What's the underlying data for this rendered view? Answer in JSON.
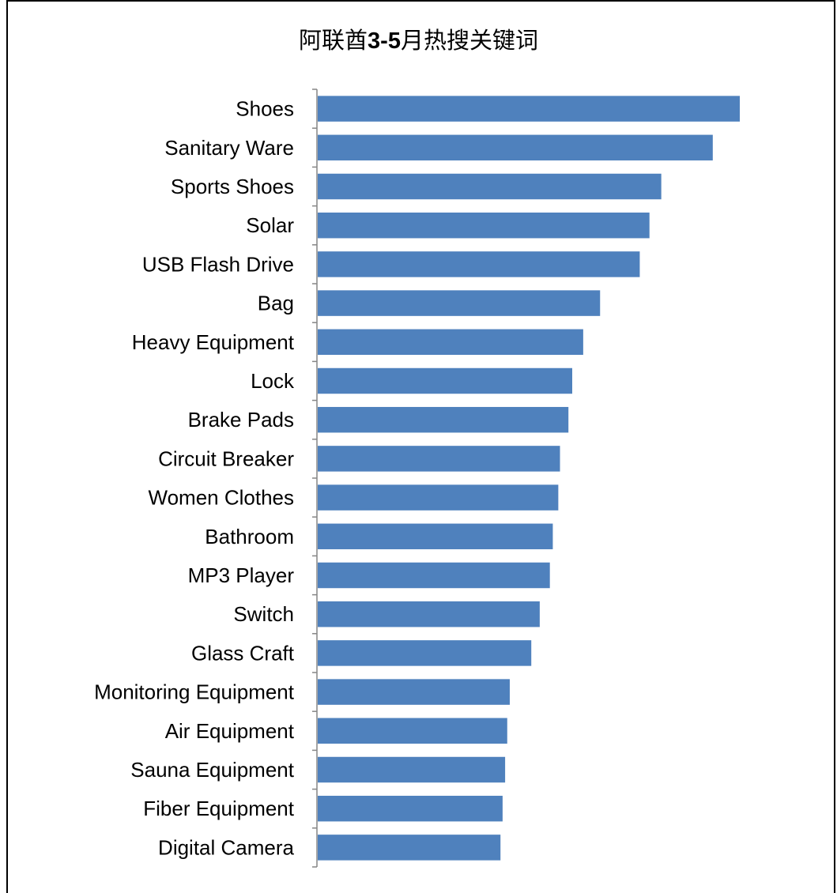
{
  "chart_data": {
    "type": "bar",
    "orientation": "horizontal",
    "title_parts": [
      "阿联酋",
      "3-5",
      "月热搜关键词"
    ],
    "categories": [
      "Shoes",
      "Sanitary Ware",
      "Sports Shoes",
      "Solar",
      "USB Flash Drive",
      "Bag",
      "Heavy Equipment",
      "Lock",
      "Brake Pads",
      "Circuit Breaker",
      "Women Clothes",
      "Bathroom",
      "MP3 Player",
      "Switch",
      "Glass Craft",
      "Monitoring Equipment",
      "Air Equipment",
      "Sauna Equipment",
      "Fiber Equipment",
      "Digital Camera"
    ],
    "values": [
      100,
      93.6,
      81.4,
      78.6,
      76.3,
      66.9,
      62.9,
      60.3,
      59.4,
      57.4,
      57.0,
      55.7,
      55.0,
      52.6,
      50.6,
      45.5,
      44.9,
      44.4,
      43.8,
      43.3
    ],
    "xlim": [
      0,
      100
    ],
    "bar_color": "#4F81BD",
    "axis_color": "#868686",
    "grid": false,
    "legend": "none"
  }
}
